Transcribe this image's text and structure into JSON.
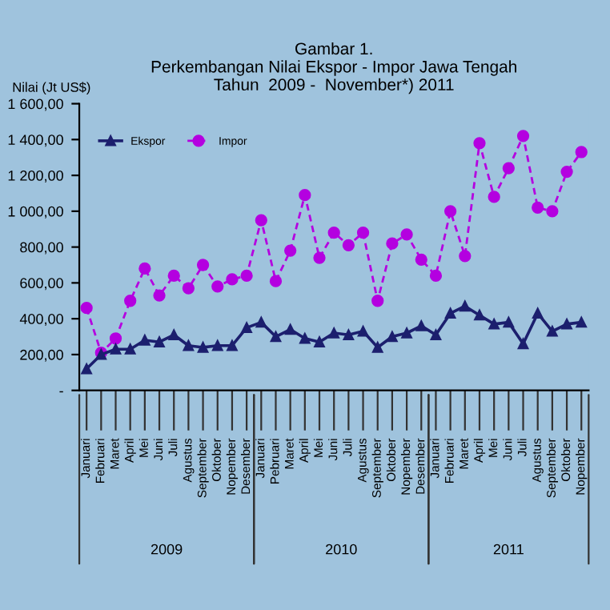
{
  "chart_data": {
    "type": "line",
    "title": "Gambar 1.\nPerkembangan Nilai Ekspor - Impor Jawa Tengah\nTahun  2009 -  November*) 2011",
    "ylabel": "Nilai (Jt US$)",
    "categories": [
      "Januari",
      "Februari",
      "Maret",
      "April",
      "Mei",
      "Juni",
      "Juli",
      "Agustus",
      "September",
      "Oktober",
      "Nopember",
      "Desember",
      "Januari",
      "Pebruari",
      "Maret",
      "April",
      "Mei",
      "Juni",
      "Juli",
      "Agustus",
      "September",
      "Oktober",
      "Nopember",
      "Desember",
      "Januari",
      "Februari",
      "Maret",
      "April",
      "Mei",
      "Juni",
      "Juli",
      "Agustus",
      "September",
      "Oktober",
      "Nopember"
    ],
    "series": [
      {
        "name": "Ekspor",
        "color": "#1c1f6e",
        "marker": "triangle",
        "line_style": "solid",
        "values": [
          120,
          200,
          230,
          230,
          280,
          270,
          310,
          250,
          240,
          250,
          250,
          350,
          380,
          300,
          340,
          290,
          270,
          320,
          310,
          330,
          240,
          300,
          320,
          360,
          310,
          430,
          470,
          420,
          370,
          380,
          260,
          430,
          330,
          370,
          380
        ]
      },
      {
        "name": "Impor",
        "color": "#b400e0",
        "marker": "circle",
        "line_style": "dashed",
        "values": [
          460,
          210,
          290,
          500,
          680,
          530,
          640,
          570,
          700,
          580,
          620,
          640,
          950,
          610,
          780,
          1090,
          740,
          880,
          810,
          880,
          500,
          820,
          870,
          730,
          640,
          1000,
          750,
          1380,
          1080,
          1240,
          1420,
          1020,
          1000,
          1220,
          1330
        ]
      }
    ],
    "ylim": [
      0,
      1600
    ],
    "yticks": [
      {
        "value": 0,
        "label": "-"
      },
      {
        "value": 200,
        "label": "200,00"
      },
      {
        "value": 400,
        "label": "400,00"
      },
      {
        "value": 600,
        "label": "600,00"
      },
      {
        "value": 800,
        "label": "800,00"
      },
      {
        "value": 1000,
        "label": "1 000,00"
      },
      {
        "value": 1200,
        "label": "1 200,00"
      },
      {
        "value": 1400,
        "label": "1 400,00"
      },
      {
        "value": 1600,
        "label": "1 600,00"
      }
    ],
    "annotations": [
      "2009",
      "2010",
      "2011"
    ],
    "legend": "top left",
    "grid": false
  }
}
